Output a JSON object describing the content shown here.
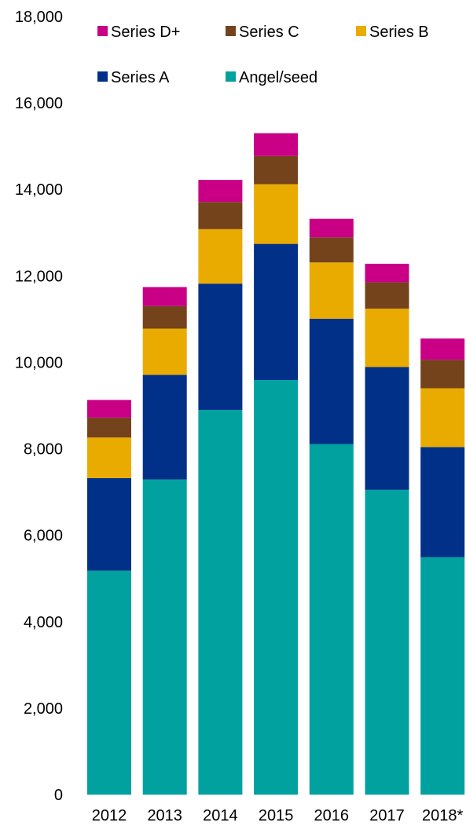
{
  "chart_data": {
    "type": "bar",
    "stacked": true,
    "categories": [
      "2012",
      "2013",
      "2014",
      "2015",
      "2016",
      "2017",
      "2018*"
    ],
    "series": [
      {
        "name": "Angel/seed",
        "color": "#00a19f",
        "values": [
          5180,
          7290,
          8900,
          9590,
          8110,
          7050,
          5490
        ]
      },
      {
        "name": "Series A",
        "color": "#003087",
        "values": [
          2140,
          2420,
          2920,
          3150,
          2900,
          2840,
          2550
        ]
      },
      {
        "name": "Series B",
        "color": "#eaab00",
        "values": [
          940,
          1070,
          1260,
          1380,
          1300,
          1350,
          1360
        ]
      },
      {
        "name": "Series C",
        "color": "#74431c",
        "values": [
          460,
          520,
          630,
          650,
          580,
          610,
          660
        ]
      },
      {
        "name": "Series D+",
        "color": "#c90085",
        "values": [
          410,
          440,
          510,
          530,
          430,
          430,
          490
        ]
      }
    ],
    "ylim": [
      0,
      18000
    ],
    "y_ticks": [
      0,
      2000,
      4000,
      6000,
      8000,
      10000,
      12000,
      14000,
      16000,
      18000
    ],
    "y_tick_labels": [
      "0",
      "2,000",
      "4,000",
      "6,000",
      "8,000",
      "10,000",
      "12,000",
      "14,000",
      "16,000",
      "18,000"
    ],
    "grid": false,
    "legend": {
      "placement": "top",
      "order": [
        "Series D+",
        "Series C",
        "Series B",
        "Series A",
        "Angel/seed"
      ]
    },
    "title": "",
    "xlabel": "",
    "ylabel": ""
  }
}
